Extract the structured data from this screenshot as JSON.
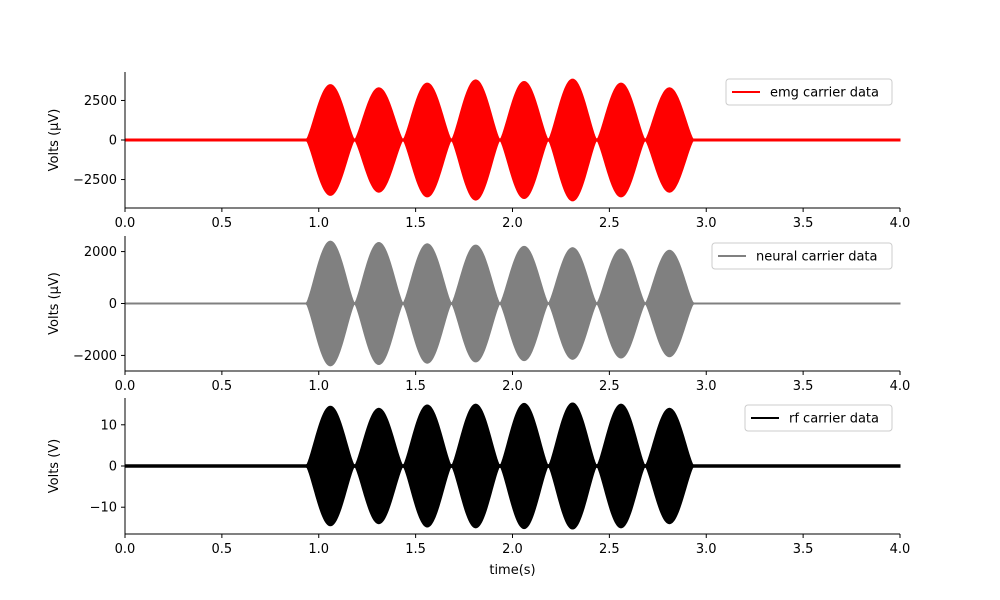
{
  "chart_data": [
    {
      "type": "line",
      "name": "top-panel",
      "xlim": [
        0,
        4
      ],
      "ylim": [
        -4300,
        4300
      ],
      "xticks": [
        0.0,
        0.5,
        1.0,
        1.5,
        2.0,
        2.5,
        3.0,
        3.5,
        4.0
      ],
      "xtick_labels": [
        "0.0",
        "0.5",
        "1.0",
        "1.5",
        "2.0",
        "2.5",
        "3.0",
        "3.5",
        "4.0"
      ],
      "yticks": [
        2500,
        0,
        -2500
      ],
      "ytick_labels": [
        "2500",
        "0",
        "−2500"
      ],
      "ylabel": "Volts (μV)",
      "xlabel": "",
      "legend_placement": "top-right",
      "grid": false,
      "series": [
        {
          "name": "emg carrier data",
          "color": "#ff0000",
          "burst_start": 0.9,
          "burst_end": 2.95,
          "lobe_centers": [
            1.06,
            1.31,
            1.56,
            1.81,
            2.06,
            2.31,
            2.56,
            2.81
          ],
          "lobe_peaks": [
            3500,
            3300,
            3600,
            3800,
            3700,
            3850,
            3600,
            3300
          ],
          "lobe_halfwidth": 0.125,
          "baseline_amplitude": 60
        }
      ]
    },
    {
      "type": "line",
      "name": "middle-panel",
      "xlim": [
        0,
        4
      ],
      "ylim": [
        -2600,
        2600
      ],
      "xticks": [
        0.0,
        0.5,
        1.0,
        1.5,
        2.0,
        2.5,
        3.0,
        3.5,
        4.0
      ],
      "xtick_labels": [
        "0.0",
        "0.5",
        "1.0",
        "1.5",
        "2.0",
        "2.5",
        "3.0",
        "3.5",
        "4.0"
      ],
      "yticks": [
        2000,
        0,
        -2000
      ],
      "ytick_labels": [
        "2000",
        "0",
        "−2000"
      ],
      "ylabel": "Volts (μV)",
      "xlabel": "",
      "legend_placement": "top-right",
      "grid": false,
      "series": [
        {
          "name": "neural carrier data",
          "color": "#808080",
          "burst_start": 0.9,
          "burst_end": 2.95,
          "lobe_centers": [
            1.06,
            1.31,
            1.56,
            1.81,
            2.06,
            2.31,
            2.56,
            2.81
          ],
          "lobe_peaks": [
            2400,
            2350,
            2300,
            2250,
            2200,
            2150,
            2100,
            2050
          ],
          "lobe_halfwidth": 0.125,
          "baseline_amplitude": 20
        }
      ]
    },
    {
      "type": "line",
      "name": "bottom-panel",
      "xlim": [
        0,
        4
      ],
      "ylim": [
        -16.5,
        16.5
      ],
      "xticks": [
        0.0,
        0.5,
        1.0,
        1.5,
        2.0,
        2.5,
        3.0,
        3.5,
        4.0
      ],
      "xtick_labels": [
        "0.0",
        "0.5",
        "1.0",
        "1.5",
        "2.0",
        "2.5",
        "3.0",
        "3.5",
        "4.0"
      ],
      "yticks": [
        10,
        0,
        -10
      ],
      "ytick_labels": [
        "10",
        "0",
        "−10"
      ],
      "ylabel": "Volts (V)",
      "xlabel": "time(s)",
      "legend_placement": "top-right",
      "grid": false,
      "series": [
        {
          "name": "rf carrier data",
          "color": "#000000",
          "burst_start": 0.9,
          "burst_end": 2.95,
          "lobe_centers": [
            1.06,
            1.31,
            1.56,
            1.81,
            2.06,
            2.31,
            2.56,
            2.81
          ],
          "lobe_peaks": [
            14.5,
            14,
            14.8,
            15,
            15.2,
            15.3,
            15,
            14
          ],
          "lobe_halfwidth": 0.125,
          "baseline_amplitude": 0.3
        }
      ]
    }
  ]
}
